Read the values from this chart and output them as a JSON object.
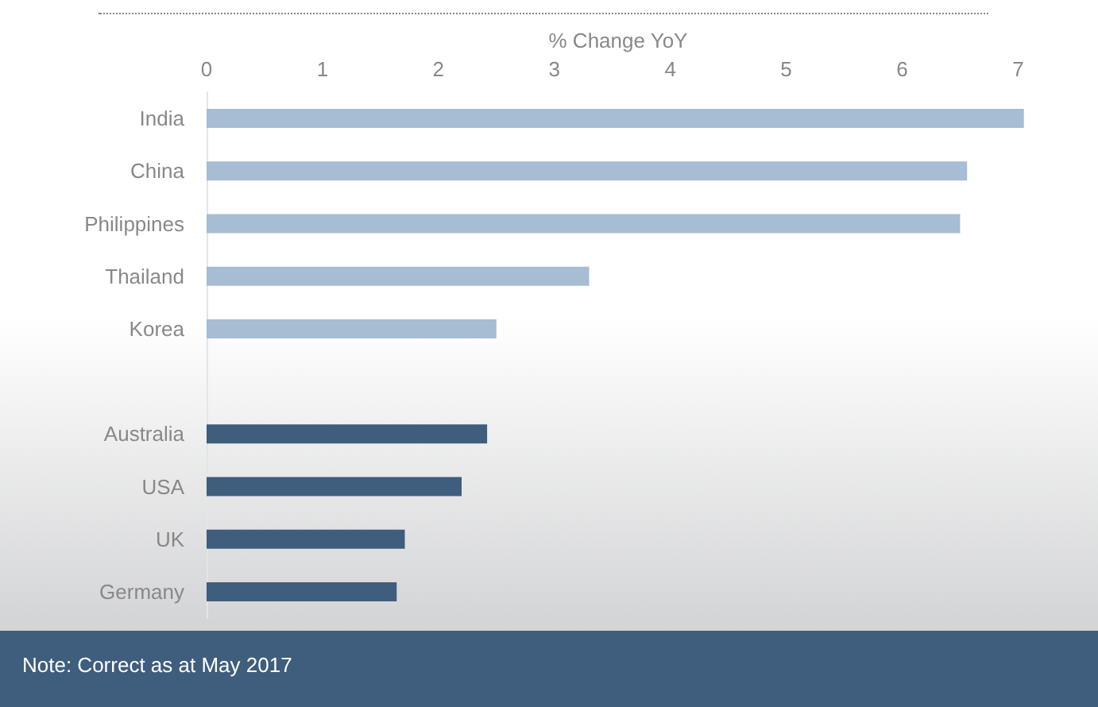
{
  "chart_data": {
    "type": "bar",
    "orientation": "horizontal",
    "xlabel": "% Change YoY",
    "categories": [
      "India",
      "China",
      "Philippines",
      "Thailand",
      "Korea",
      null,
      "Australia",
      "USA",
      "UK",
      "Germany"
    ],
    "values": [
      7.05,
      6.56,
      6.5,
      3.3,
      2.5,
      null,
      2.42,
      2.2,
      1.71,
      1.64
    ],
    "colors": [
      "#a6bdd3",
      "#a6bdd3",
      "#a6bdd3",
      "#a6bdd3",
      "#a6bdd3",
      null,
      "#3f5d7d",
      "#3f5d7d",
      "#3f5d7d",
      "#3f5d7d"
    ],
    "xlim": [
      0,
      7.1
    ],
    "xticks": [
      0,
      1,
      2,
      3,
      4,
      5,
      6,
      7
    ],
    "grid": false,
    "annotations": [
      "Note: Correct as at May 2017"
    ]
  }
}
